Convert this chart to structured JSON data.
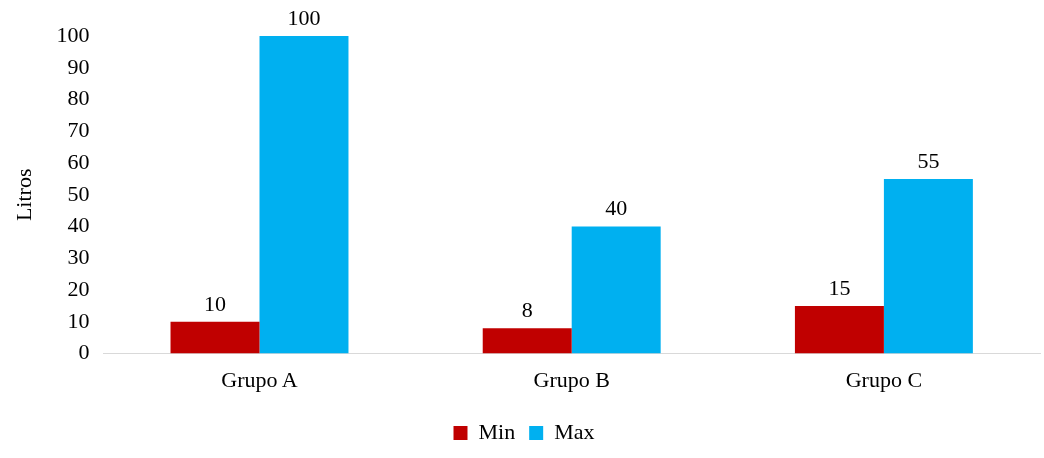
{
  "chart_data": {
    "type": "bar",
    "ylabel": "Litros",
    "categories": [
      "Grupo A",
      "Grupo B",
      "Grupo C"
    ],
    "series": [
      {
        "name": "Min",
        "color": "#c00000",
        "values": [
          10,
          8,
          15
        ]
      },
      {
        "name": "Max",
        "color": "#00b0f0",
        "values": [
          100,
          40,
          55
        ]
      }
    ],
    "ylim": [
      0,
      100
    ],
    "yticks": [
      0,
      10,
      20,
      30,
      40,
      50,
      60,
      70,
      80,
      90,
      100
    ],
    "grid": false,
    "legend": "bottom",
    "data_labels": true
  }
}
